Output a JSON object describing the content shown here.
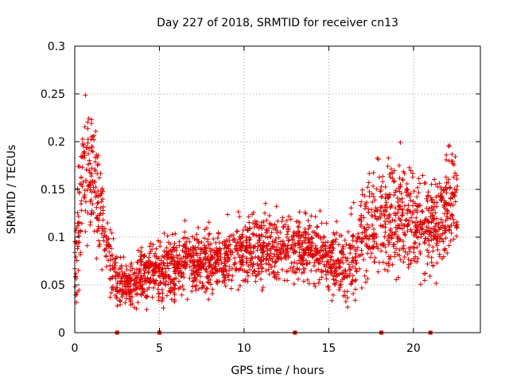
{
  "chart_data": {
    "type": "scatter",
    "title": "Day 227 of 2018, SRMTID for receiver cn13",
    "xlabel": "GPS time / hours",
    "ylabel": "SRMTID / TECUs",
    "xlim": [
      0,
      23.95
    ],
    "ylim": [
      0,
      0.3
    ],
    "xticks": [
      0,
      5,
      10,
      15,
      20
    ],
    "yticks": [
      0,
      0.05,
      0.1,
      0.15,
      0.2,
      0.25,
      0.3
    ],
    "xtick_labels": [
      "0",
      "5",
      "10",
      "15",
      "20"
    ],
    "ytick_labels": [
      "0",
      "0.05",
      "0.1",
      "0.15",
      "0.2",
      "0.25",
      "0.3"
    ],
    "grid": true,
    "marker": "+",
    "series_color": "#dd0000",
    "zero_markers_x": [
      2.5,
      5.0,
      13.0,
      18.1,
      21.0
    ],
    "trend": {
      "hours": [
        0,
        0.5,
        1,
        1.5,
        2,
        2.5,
        3,
        3.5,
        4,
        5,
        6,
        7,
        8,
        9,
        10,
        11,
        12,
        13,
        14,
        15,
        16,
        16.5,
        17,
        18,
        19,
        20,
        21,
        22,
        22.6
      ],
      "median": [
        0.07,
        0.16,
        0.17,
        0.13,
        0.08,
        0.055,
        0.05,
        0.045,
        0.06,
        0.065,
        0.07,
        0.075,
        0.075,
        0.08,
        0.085,
        0.085,
        0.09,
        0.09,
        0.09,
        0.075,
        0.065,
        0.08,
        0.11,
        0.12,
        0.125,
        0.12,
        0.11,
        0.13,
        0.14
      ],
      "spread": [
        0.035,
        0.05,
        0.05,
        0.04,
        0.025,
        0.02,
        0.018,
        0.018,
        0.02,
        0.022,
        0.022,
        0.022,
        0.022,
        0.025,
        0.025,
        0.025,
        0.025,
        0.025,
        0.025,
        0.022,
        0.025,
        0.03,
        0.035,
        0.04,
        0.045,
        0.04,
        0.035,
        0.04,
        0.04
      ]
    },
    "approx_point_count": 2400,
    "x_range_hours": [
      0,
      22.6
    ]
  }
}
